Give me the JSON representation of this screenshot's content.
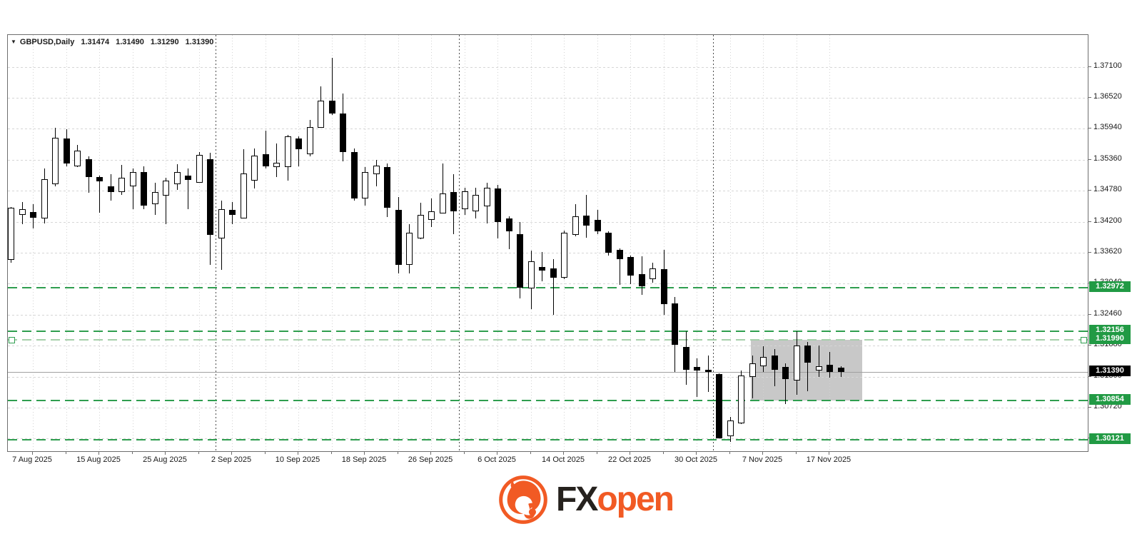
{
  "header": {
    "symbol": "GBPUSD,Daily",
    "open": "1.31474",
    "high": "1.31490",
    "low": "1.31290",
    "close": "1.31390"
  },
  "brand": {
    "fx": "FX",
    "open": "open"
  },
  "colors": {
    "level_green": "#2f9e4f",
    "level_green_pale": "#a6cfaa",
    "label_green_bg": "#219a44",
    "current_label_bg": "#000000",
    "box_gray": "#c8c8c8",
    "bull_fill": "#ffffff",
    "bear_fill": "#000000",
    "brand_orange": "#f15a24"
  },
  "chart_data": {
    "type": "candlestick",
    "symbol": "GBPUSD",
    "timeframe": "Daily",
    "grid": true,
    "y_axis": {
      "tick_step": 0.0058,
      "ticks": [
        1.371,
        1.3652,
        1.3594,
        1.3536,
        1.3478,
        1.342,
        1.3362,
        1.3304,
        1.3246,
        1.3188,
        1.313,
        1.3072,
        1.3014
      ],
      "visible_range": [
        1.29906,
        1.37697
      ]
    },
    "x_axis": {
      "labels": [
        "7 Aug 2025",
        "15 Aug 2025",
        "25 Aug 2025",
        "2 Sep 2025",
        "10 Sep 2025",
        "18 Sep 2025",
        "26 Sep 2025",
        "6 Oct 2025",
        "14 Oct 2025",
        "22 Oct 2025",
        "30 Oct 2025",
        "7 Nov 2025",
        "17 Nov 2025"
      ],
      "label_indices": [
        2,
        8,
        14,
        20,
        26,
        32,
        38,
        44,
        50,
        56,
        62,
        68,
        74
      ],
      "minor_tick_indices": [
        5,
        11,
        17,
        23,
        29,
        35,
        41,
        47,
        53,
        59,
        65,
        71
      ]
    },
    "month_separator_indices": [
      19,
      41,
      64
    ],
    "levels": [
      {
        "price": 1.32972,
        "label": "1.32972",
        "style": "dashed",
        "pale": false,
        "handles": false
      },
      {
        "price": 1.32156,
        "label": "1.32156",
        "style": "dashed",
        "pale": false,
        "handles": false
      },
      {
        "price": 1.3199,
        "label": "1.31990",
        "style": "dashed",
        "pale": true,
        "handles": true
      },
      {
        "price": 1.30854,
        "label": "1.30854",
        "style": "dashed",
        "pale": false,
        "handles": false
      },
      {
        "price": 1.30121,
        "label": "1.30121",
        "style": "dashed",
        "pale": false,
        "handles": false
      }
    ],
    "current_price": {
      "value": 1.3139,
      "label": "1.31390"
    },
    "highlight_box": {
      "from_index": 66.9,
      "to_index": 77.0,
      "top_price": 1.3199,
      "bottom_price": 1.30854
    },
    "candles": [
      {
        "d": "5 Aug",
        "o": 1.3349,
        "h": 1.3448,
        "l": 1.3343,
        "c": 1.3446
      },
      {
        "d": "6 Aug",
        "o": 1.3433,
        "h": 1.3457,
        "l": 1.3416,
        "c": 1.3444
      },
      {
        "d": "7 Aug",
        "o": 1.3438,
        "h": 1.3453,
        "l": 1.3407,
        "c": 1.3428
      },
      {
        "d": "8 Aug",
        "o": 1.3426,
        "h": 1.352,
        "l": 1.3417,
        "c": 1.35
      },
      {
        "d": "11 Aug",
        "o": 1.349,
        "h": 1.3596,
        "l": 1.3487,
        "c": 1.3577
      },
      {
        "d": "12 Aug",
        "o": 1.3576,
        "h": 1.3593,
        "l": 1.3524,
        "c": 1.3529
      },
      {
        "d": "13 Aug",
        "o": 1.3524,
        "h": 1.3564,
        "l": 1.3522,
        "c": 1.3553
      },
      {
        "d": "14 Aug",
        "o": 1.3537,
        "h": 1.3543,
        "l": 1.3474,
        "c": 1.3504
      },
      {
        "d": "15 Aug",
        "o": 1.3504,
        "h": 1.3507,
        "l": 1.3437,
        "c": 1.3496
      },
      {
        "d": "18 Aug",
        "o": 1.3486,
        "h": 1.3509,
        "l": 1.346,
        "c": 1.3476
      },
      {
        "d": "19 Aug",
        "o": 1.3476,
        "h": 1.3527,
        "l": 1.347,
        "c": 1.3502
      },
      {
        "d": "20 Aug",
        "o": 1.3486,
        "h": 1.352,
        "l": 1.3443,
        "c": 1.3513
      },
      {
        "d": "21 Aug",
        "o": 1.3513,
        "h": 1.3524,
        "l": 1.3444,
        "c": 1.345
      },
      {
        "d": "22 Aug",
        "o": 1.3453,
        "h": 1.3493,
        "l": 1.3433,
        "c": 1.3476
      },
      {
        "d": "25 Aug",
        "o": 1.3469,
        "h": 1.3502,
        "l": 1.3416,
        "c": 1.3497
      },
      {
        "d": "26 Aug",
        "o": 1.349,
        "h": 1.3528,
        "l": 1.348,
        "c": 1.3513
      },
      {
        "d": "27 Aug",
        "o": 1.3506,
        "h": 1.352,
        "l": 1.3444,
        "c": 1.3499
      },
      {
        "d": "28 Aug",
        "o": 1.3493,
        "h": 1.3551,
        "l": 1.3493,
        "c": 1.3545
      },
      {
        "d": "29 Aug",
        "o": 1.3537,
        "h": 1.3549,
        "l": 1.3339,
        "c": 1.3396
      },
      {
        "d": "1 Sep",
        "o": 1.3389,
        "h": 1.346,
        "l": 1.333,
        "c": 1.3444
      },
      {
        "d": "2 Sep",
        "o": 1.3442,
        "h": 1.3457,
        "l": 1.3416,
        "c": 1.3433
      },
      {
        "d": "3 Sep",
        "o": 1.3426,
        "h": 1.3556,
        "l": 1.3426,
        "c": 1.3511
      },
      {
        "d": "4 Sep",
        "o": 1.3497,
        "h": 1.3557,
        "l": 1.3482,
        "c": 1.3544
      },
      {
        "d": "5 Sep",
        "o": 1.3547,
        "h": 1.3591,
        "l": 1.352,
        "c": 1.3524
      },
      {
        "d": "8 Sep",
        "o": 1.3523,
        "h": 1.3567,
        "l": 1.3504,
        "c": 1.3531
      },
      {
        "d": "9 Sep",
        "o": 1.3523,
        "h": 1.3583,
        "l": 1.3497,
        "c": 1.358
      },
      {
        "d": "10 Sep",
        "o": 1.3576,
        "h": 1.358,
        "l": 1.3524,
        "c": 1.3556
      },
      {
        "d": "11 Sep",
        "o": 1.3547,
        "h": 1.3611,
        "l": 1.3543,
        "c": 1.3597
      },
      {
        "d": "12 Sep",
        "o": 1.3596,
        "h": 1.3674,
        "l": 1.3596,
        "c": 1.3647
      },
      {
        "d": "15 Sep",
        "o": 1.3647,
        "h": 1.3727,
        "l": 1.362,
        "c": 1.3623
      },
      {
        "d": "16 Sep",
        "o": 1.3623,
        "h": 1.366,
        "l": 1.3533,
        "c": 1.3551
      },
      {
        "d": "17 Sep",
        "o": 1.3551,
        "h": 1.3557,
        "l": 1.346,
        "c": 1.3464
      },
      {
        "d": "18 Sep",
        "o": 1.3464,
        "h": 1.3523,
        "l": 1.345,
        "c": 1.3513
      },
      {
        "d": "19 Sep",
        "o": 1.3509,
        "h": 1.3536,
        "l": 1.3486,
        "c": 1.3525
      },
      {
        "d": "22 Sep",
        "o": 1.3523,
        "h": 1.3529,
        "l": 1.3429,
        "c": 1.3446
      },
      {
        "d": "23 Sep",
        "o": 1.3442,
        "h": 1.3466,
        "l": 1.3323,
        "c": 1.3339
      },
      {
        "d": "24 Sep",
        "o": 1.3339,
        "h": 1.3416,
        "l": 1.3323,
        "c": 1.34
      },
      {
        "d": "25 Sep",
        "o": 1.3389,
        "h": 1.3456,
        "l": 1.3387,
        "c": 1.3433
      },
      {
        "d": "26 Sep",
        "o": 1.3424,
        "h": 1.3464,
        "l": 1.341,
        "c": 1.344
      },
      {
        "d": "29 Sep",
        "o": 1.3436,
        "h": 1.3529,
        "l": 1.3435,
        "c": 1.3473
      },
      {
        "d": "30 Sep",
        "o": 1.3476,
        "h": 1.3509,
        "l": 1.3397,
        "c": 1.344
      },
      {
        "d": "1 Oct",
        "o": 1.3444,
        "h": 1.3484,
        "l": 1.3433,
        "c": 1.3477
      },
      {
        "d": "2 Oct",
        "o": 1.344,
        "h": 1.3484,
        "l": 1.3426,
        "c": 1.347
      },
      {
        "d": "3 Oct",
        "o": 1.3449,
        "h": 1.3493,
        "l": 1.3417,
        "c": 1.3484
      },
      {
        "d": "6 Oct",
        "o": 1.3482,
        "h": 1.3489,
        "l": 1.3389,
        "c": 1.342
      },
      {
        "d": "7 Oct",
        "o": 1.3426,
        "h": 1.343,
        "l": 1.3369,
        "c": 1.3402
      },
      {
        "d": "8 Oct",
        "o": 1.3397,
        "h": 1.342,
        "l": 1.3277,
        "c": 1.3297
      },
      {
        "d": "9 Oct",
        "o": 1.3295,
        "h": 1.3366,
        "l": 1.3257,
        "c": 1.3346
      },
      {
        "d": "10 Oct",
        "o": 1.3335,
        "h": 1.3363,
        "l": 1.3309,
        "c": 1.3329
      },
      {
        "d": "13 Oct",
        "o": 1.3333,
        "h": 1.335,
        "l": 1.3246,
        "c": 1.3315
      },
      {
        "d": "14 Oct",
        "o": 1.3315,
        "h": 1.3404,
        "l": 1.3313,
        "c": 1.34
      },
      {
        "d": "15 Oct",
        "o": 1.3396,
        "h": 1.3453,
        "l": 1.3393,
        "c": 1.343
      },
      {
        "d": "16 Oct",
        "o": 1.3432,
        "h": 1.347,
        "l": 1.339,
        "c": 1.3413
      },
      {
        "d": "17 Oct",
        "o": 1.3424,
        "h": 1.3442,
        "l": 1.3397,
        "c": 1.3402
      },
      {
        "d": "20 Oct",
        "o": 1.34,
        "h": 1.3402,
        "l": 1.3357,
        "c": 1.3362
      },
      {
        "d": "21 Oct",
        "o": 1.3367,
        "h": 1.337,
        "l": 1.3302,
        "c": 1.335
      },
      {
        "d": "22 Oct",
        "o": 1.3354,
        "h": 1.3357,
        "l": 1.3303,
        "c": 1.3319
      },
      {
        "d": "23 Oct",
        "o": 1.3322,
        "h": 1.3355,
        "l": 1.3283,
        "c": 1.3299
      },
      {
        "d": "24 Oct",
        "o": 1.3313,
        "h": 1.3343,
        "l": 1.3306,
        "c": 1.3333
      },
      {
        "d": "27 Oct",
        "o": 1.3331,
        "h": 1.3367,
        "l": 1.3246,
        "c": 1.3266
      },
      {
        "d": "28 Oct",
        "o": 1.3267,
        "h": 1.3279,
        "l": 1.3139,
        "c": 1.319
      },
      {
        "d": "29 Oct",
        "o": 1.3186,
        "h": 1.3215,
        "l": 1.3115,
        "c": 1.3143
      },
      {
        "d": "30 Oct",
        "o": 1.3148,
        "h": 1.3164,
        "l": 1.3092,
        "c": 1.3142
      },
      {
        "d": "31 Oct",
        "o": 1.3143,
        "h": 1.317,
        "l": 1.3102,
        "c": 1.3139
      },
      {
        "d": "3 Nov",
        "o": 1.3135,
        "h": 1.3136,
        "l": 1.3014,
        "c": 1.3015
      },
      {
        "d": "4 Nov",
        "o": 1.3019,
        "h": 1.3055,
        "l": 1.3008,
        "c": 1.3048
      },
      {
        "d": "5 Nov",
        "o": 1.3043,
        "h": 1.3142,
        "l": 1.3041,
        "c": 1.3132
      },
      {
        "d": "6 Nov",
        "o": 1.313,
        "h": 1.317,
        "l": 1.3089,
        "c": 1.3155
      },
      {
        "d": "7 Nov",
        "o": 1.315,
        "h": 1.3187,
        "l": 1.3139,
        "c": 1.3167
      },
      {
        "d": "10 Nov",
        "o": 1.317,
        "h": 1.3182,
        "l": 1.3112,
        "c": 1.3143
      },
      {
        "d": "11 Nov",
        "o": 1.3148,
        "h": 1.3155,
        "l": 1.3079,
        "c": 1.3126
      },
      {
        "d": "12 Nov",
        "o": 1.3123,
        "h": 1.3215,
        "l": 1.3096,
        "c": 1.3188
      },
      {
        "d": "13 Nov",
        "o": 1.3188,
        "h": 1.3195,
        "l": 1.3103,
        "c": 1.3156
      },
      {
        "d": "14 Nov",
        "o": 1.3142,
        "h": 1.3188,
        "l": 1.313,
        "c": 1.315
      },
      {
        "d": "17 Nov",
        "o": 1.3152,
        "h": 1.3176,
        "l": 1.3128,
        "c": 1.3139
      },
      {
        "d": "18 Nov",
        "o": 1.31474,
        "h": 1.3149,
        "l": 1.3129,
        "c": 1.3139
      }
    ]
  }
}
